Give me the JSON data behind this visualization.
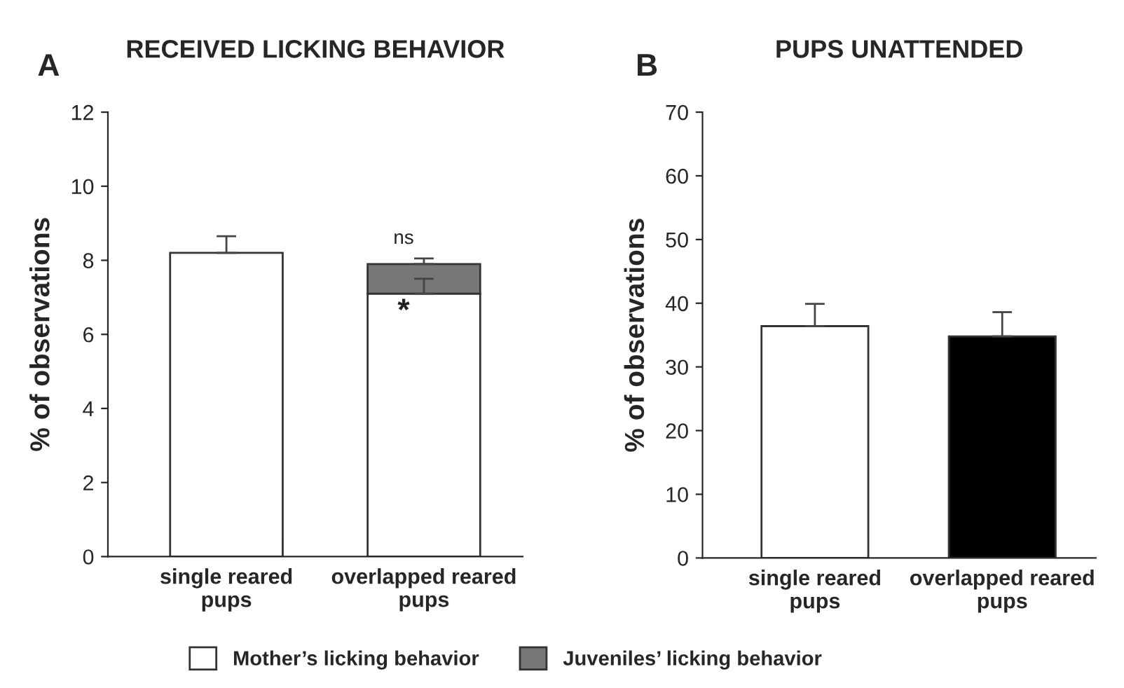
{
  "chart_data": [
    {
      "type": "bar",
      "title": "RECEIVED LICKING BEHAVIOR",
      "ylabel": "% of observations",
      "categories": [
        "single reared\npups",
        "overlapped reared\npups"
      ],
      "stacked": true,
      "series": [
        {
          "name": "Mother’s licking behavior",
          "color": "#ffffff",
          "values": [
            8.2,
            7.1
          ],
          "errors": [
            [
              8.2,
              8.65
            ],
            [
              7.1,
              7.5
            ]
          ]
        },
        {
          "name": "Juveniles’ licking behavior",
          "color": "#777777",
          "values": [
            null,
            0.8
          ],
          "errors": [
            null,
            [
              7.9,
              8.05
            ]
          ]
        }
      ],
      "ylim": [
        0,
        12
      ],
      "yticks": [
        0,
        2,
        4,
        6,
        8,
        10,
        12
      ],
      "legend": "bottom",
      "annotations": [
        "A",
        "ns",
        "*"
      ]
    },
    {
      "type": "bar",
      "title": "PUPS UNATTENDED",
      "ylabel": "% of observations",
      "categories": [
        "single reared\npups",
        "overlapped reared\npups"
      ],
      "values": [
        36.4,
        34.8
      ],
      "colors": [
        "#ffffff",
        "#000000"
      ],
      "errors": [
        [
          36.4,
          39.9
        ],
        [
          34.8,
          38.6
        ]
      ],
      "ylim": [
        0,
        70
      ],
      "yticks": [
        0,
        10,
        20,
        30,
        40,
        50,
        60,
        70
      ],
      "annotations": [
        "B"
      ]
    }
  ]
}
